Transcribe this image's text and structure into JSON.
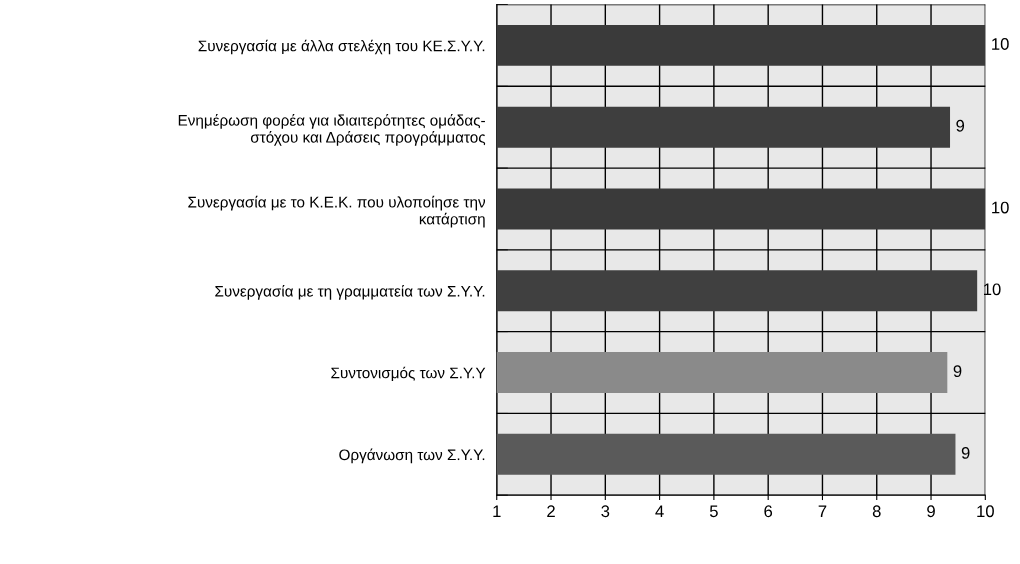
{
  "chart_data": {
    "type": "bar",
    "orientation": "horizontal",
    "categories": [
      "Συνεργασία με άλλα στελέχη του ΚΕ.Σ.Υ.Υ.",
      "Ενημέρωση φορέα για ιδιαιτερότητες ομάδας-\nστόχου και Δράσεις προγράμματος",
      "Συνεργασία με το Κ.Ε.Κ. που υλοποίησε την\nκατάρτιση",
      "Συνεργασία με τη γραμματεία των Σ.Υ.Υ.",
      "Συντονισμός των Σ.Υ.Υ",
      "Οργάνωση των Σ.Υ.Υ."
    ],
    "values": [
      10,
      9.35,
      10,
      9.85,
      9.3,
      9.45
    ],
    "value_labels": [
      "10",
      "9",
      "10",
      "10",
      "9",
      "9"
    ],
    "colors": [
      "#3a3a3a",
      "#3e3e3e",
      "#3a3a3a",
      "#404040",
      "#8a8a8a",
      "#5a5a5a"
    ],
    "xlim": [
      1,
      10
    ],
    "xticks": [
      1,
      2,
      3,
      4,
      5,
      6,
      7,
      8,
      9,
      10
    ],
    "grid": true
  }
}
